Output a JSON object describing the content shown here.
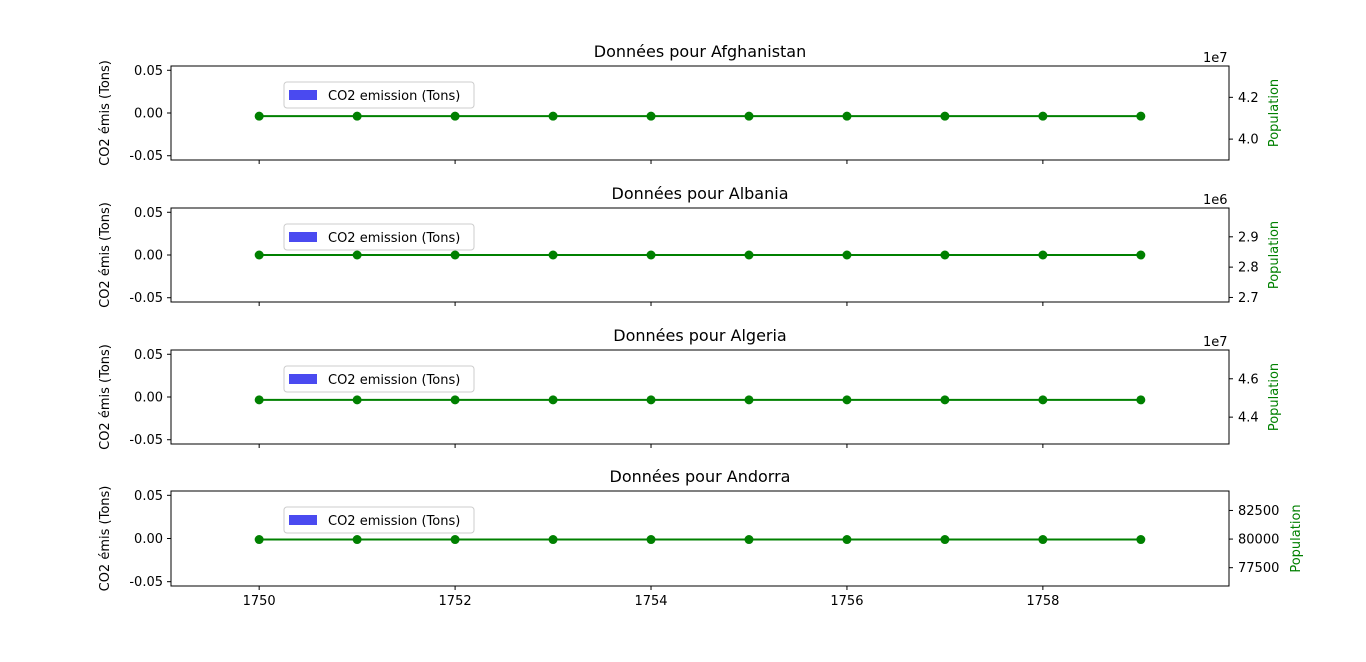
{
  "chart_data": [
    {
      "type": "bar",
      "title": "Données pour Afghanistan",
      "ylabel": "CO2 émis (Tons)",
      "y2label": "Population",
      "y_ticks": [
        "0.05",
        "0.00",
        "-0.05"
      ],
      "y_tick_values": [
        0.05,
        0,
        -0.05
      ],
      "ylim": [
        -0.055,
        0.055
      ],
      "y2_ticks": [
        "4.2",
        "4.0"
      ],
      "y2_tick_values": [
        4.2,
        4.0
      ],
      "y2lim": [
        3.9,
        4.35
      ],
      "y2_multiplier": "1e7",
      "legend": "CO2 emission (Tons)",
      "legend_position": "upper-left",
      "x": [
        1750,
        1751,
        1752,
        1753,
        1754,
        1755,
        1756,
        1757,
        1758,
        1759
      ],
      "co2": [
        0,
        0,
        0,
        0,
        0,
        0,
        0,
        0,
        0,
        0
      ],
      "population": [
        4.11,
        4.11,
        4.11,
        4.11,
        4.11,
        4.11,
        4.11,
        4.11,
        4.11,
        4.11
      ]
    },
    {
      "type": "bar",
      "title": "Données pour Albania",
      "ylabel": "CO2 émis (Tons)",
      "y2label": "Population",
      "y_ticks": [
        "0.05",
        "0.00",
        "-0.05"
      ],
      "y_tick_values": [
        0.05,
        0,
        -0.05
      ],
      "ylim": [
        -0.055,
        0.055
      ],
      "y2_ticks": [
        "2.9",
        "2.8",
        "2.7"
      ],
      "y2_tick_values": [
        2.9,
        2.8,
        2.7
      ],
      "y2lim": [
        2.685,
        2.995
      ],
      "y2_multiplier": "1e6",
      "legend": "CO2 emission (Tons)",
      "legend_position": "upper-left",
      "x": [
        1750,
        1751,
        1752,
        1753,
        1754,
        1755,
        1756,
        1757,
        1758,
        1759
      ],
      "co2": [
        0,
        0,
        0,
        0,
        0,
        0,
        0,
        0,
        0,
        0
      ],
      "population": [
        2.84,
        2.84,
        2.84,
        2.84,
        2.84,
        2.84,
        2.84,
        2.84,
        2.84,
        2.84
      ]
    },
    {
      "type": "bar",
      "title": "Données pour Algeria",
      "ylabel": "CO2 émis (Tons)",
      "y2label": "Population",
      "y_ticks": [
        "0.05",
        "0.00",
        "-0.05"
      ],
      "y_tick_values": [
        0.05,
        0,
        -0.05
      ],
      "ylim": [
        -0.055,
        0.055
      ],
      "y2_ticks": [
        "4.6",
        "4.4"
      ],
      "y2_tick_values": [
        4.6,
        4.4
      ],
      "y2lim": [
        4.26,
        4.75
      ],
      "y2_multiplier": "1e7",
      "legend": "CO2 emission (Tons)",
      "legend_position": "upper-left",
      "x": [
        1750,
        1751,
        1752,
        1753,
        1754,
        1755,
        1756,
        1757,
        1758,
        1759
      ],
      "co2": [
        0,
        0,
        0,
        0,
        0,
        0,
        0,
        0,
        0,
        0
      ],
      "population": [
        4.49,
        4.49,
        4.49,
        4.49,
        4.49,
        4.49,
        4.49,
        4.49,
        4.49,
        4.49
      ]
    },
    {
      "type": "bar",
      "title": "Données pour Andorra",
      "ylabel": "CO2 émis (Tons)",
      "y2label": "Population",
      "y_ticks": [
        "0.05",
        "0.00",
        "-0.05"
      ],
      "y_tick_values": [
        0.05,
        0,
        -0.05
      ],
      "ylim": [
        -0.055,
        0.055
      ],
      "y2_ticks": [
        "82500",
        "80000",
        "77500"
      ],
      "y2_tick_values": [
        82500,
        80000,
        77500
      ],
      "y2lim": [
        75900,
        84200
      ],
      "y2_multiplier": "",
      "legend": "CO2 emission (Tons)",
      "legend_position": "upper-left",
      "x": [
        1750,
        1751,
        1752,
        1753,
        1754,
        1755,
        1756,
        1757,
        1758,
        1759
      ],
      "co2": [
        0,
        0,
        0,
        0,
        0,
        0,
        0,
        0,
        0,
        0
      ],
      "population": [
        79960,
        79960,
        79960,
        79960,
        79960,
        79960,
        79960,
        79960,
        79960,
        79960
      ]
    }
  ],
  "shared_x": {
    "xlim": [
      1749.1,
      1759.9
    ],
    "x_ticks": [
      "1750",
      "1752",
      "1754",
      "1756",
      "1758"
    ],
    "x_tick_values": [
      1750,
      1752,
      1754,
      1756,
      1758
    ]
  },
  "colors": {
    "line": "#008000",
    "bar": "#4a4af0",
    "axis": "#000000"
  }
}
